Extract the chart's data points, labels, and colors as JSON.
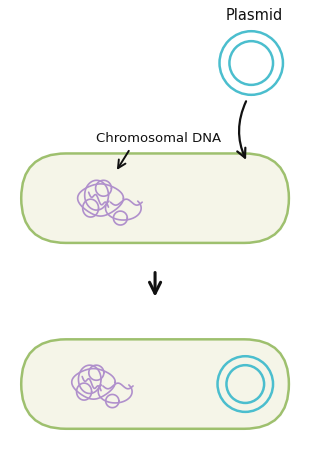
{
  "bg_color": "#ffffff",
  "bacterium_fill": "#f5f5e8",
  "bacterium_edge": "#9ec06e",
  "plasmid_edge": "#4bbece",
  "dna_color": "#b090cc",
  "arrow_color": "#111111",
  "text_color": "#111111",
  "label_plasmid": "Plasmid",
  "label_dna": "Chromosomal DNA",
  "fig_w": 3.24,
  "fig_h": 4.58,
  "dpi": 100
}
